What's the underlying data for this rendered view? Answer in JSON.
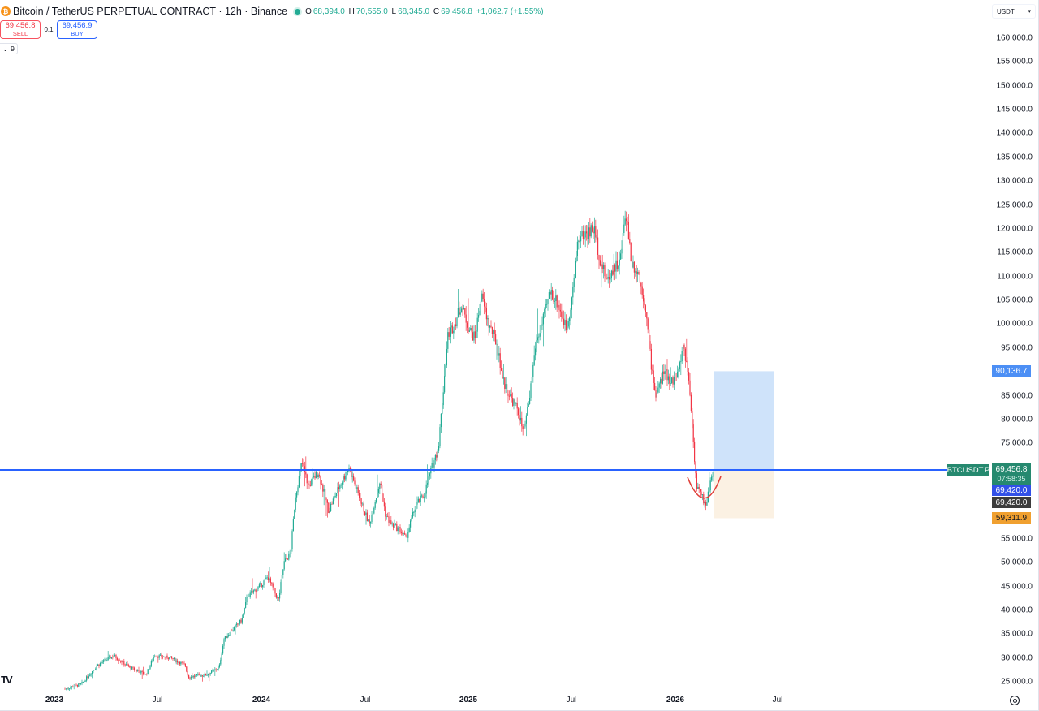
{
  "header": {
    "symbol_icon": "bitcoin-icon",
    "symbol_icon_glyph": "₿",
    "title": "Bitcoin / TetherUS PERPETUAL CONTRACT · 12h · Binance",
    "ohlc": {
      "o_label": "O",
      "o": "68,394.0",
      "h_label": "H",
      "h": "70,555.0",
      "l_label": "L",
      "l": "68,345.0",
      "c_label": "C",
      "c": "69,456.8",
      "change": "+1,062.7 (+1.55%)"
    },
    "currency": "USDT"
  },
  "trade_panel": {
    "sell_price": "69,456.8",
    "sell_label": "SELL",
    "quantity": "0.1",
    "buy_price": "69,456.9",
    "buy_label": "BUY",
    "collapse_count": "9"
  },
  "price_axis": {
    "ticks": [
      "160,000.0",
      "155,000.0",
      "150,000.0",
      "145,000.0",
      "140,000.0",
      "135,000.0",
      "130,000.0",
      "125,000.0",
      "120,000.0",
      "115,000.0",
      "110,000.0",
      "105,000.0",
      "100,000.0",
      "95,000.0",
      "85,000.0",
      "80,000.0",
      "75,000.0",
      "55,000.0",
      "50,000.0",
      "45,000.0",
      "40,000.0",
      "35,000.0",
      "30,000.0",
      "25,000.0"
    ],
    "labels": {
      "target": "90,136.7",
      "symbol": "BTCUSDT.P",
      "last": "69,456.8",
      "countdown": "07:58:35",
      "line_price": "69,420.0",
      "crosshair_price": "69,420.0",
      "stop": "59,311.9"
    }
  },
  "time_axis": {
    "ticks": [
      {
        "label": "2023",
        "year": true
      },
      {
        "label": "Jul",
        "year": false
      },
      {
        "label": "2024",
        "year": true
      },
      {
        "label": "Jul",
        "year": false
      },
      {
        "label": "2025",
        "year": true
      },
      {
        "label": "Jul",
        "year": false
      },
      {
        "label": "2026",
        "year": true
      },
      {
        "label": "Jul",
        "year": false
      }
    ]
  },
  "colors": {
    "up": "#22ab94",
    "down": "#f23645",
    "horizontal_line": "#2962ff",
    "target_zone": "#cfe3fa",
    "stop_zone": "#fbf1e3",
    "target_label": "#4c8ff5",
    "stop_label": "#f0a030",
    "last_label": "#26896f",
    "line_label": "#3150e8",
    "crosshair_label": "#3c3c3c",
    "curve": "#e0403a"
  },
  "chart_data": {
    "type": "candlestick",
    "title": "Bitcoin / TetherUS PERPETUAL CONTRACT · 12h · Binance",
    "x_ticks": [
      "2023",
      "Jul",
      "2024",
      "Jul",
      "2025",
      "Jul",
      "2026",
      "Jul"
    ],
    "ylim": [
      22000,
      162000
    ],
    "approx_close_path": [
      {
        "t": "2023-01",
        "price": 23500
      },
      {
        "t": "2023-03",
        "price": 28000
      },
      {
        "t": "2023-04",
        "price": 30500
      },
      {
        "t": "2023-06",
        "price": 27000
      },
      {
        "t": "2023-07",
        "price": 30500
      },
      {
        "t": "2023-09",
        "price": 26000
      },
      {
        "t": "2023-10",
        "price": 34000
      },
      {
        "t": "2023-12",
        "price": 43000
      },
      {
        "t": "2024-01",
        "price": 42000
      },
      {
        "t": "2024-02",
        "price": 52000
      },
      {
        "t": "2024-03",
        "price": 71000
      },
      {
        "t": "2024-05",
        "price": 62000
      },
      {
        "t": "2024-06",
        "price": 70000
      },
      {
        "t": "2024-08",
        "price": 56000
      },
      {
        "t": "2024-10",
        "price": 64000
      },
      {
        "t": "2024-11",
        "price": 85000
      },
      {
        "t": "2024-12",
        "price": 105000
      },
      {
        "t": "2025-01",
        "price": 106000
      },
      {
        "t": "2025-03",
        "price": 82000
      },
      {
        "t": "2025-04",
        "price": 78000
      },
      {
        "t": "2025-05",
        "price": 106000
      },
      {
        "t": "2025-07",
        "price": 118000
      },
      {
        "t": "2025-08",
        "price": 112000
      },
      {
        "t": "2025-10",
        "price": 125000
      },
      {
        "t": "2025-11",
        "price": 88000
      },
      {
        "t": "2026-01",
        "price": 96000
      },
      {
        "t": "2026-02",
        "price": 64000
      },
      {
        "t": "2026-03",
        "price": 69456.8
      }
    ],
    "annotations": {
      "horizontal_line": 69420.0,
      "long_position": {
        "entry": 69420.0,
        "target": 90136.7,
        "stop": 59311.9
      },
      "rounded_bottom_curve": true
    }
  }
}
